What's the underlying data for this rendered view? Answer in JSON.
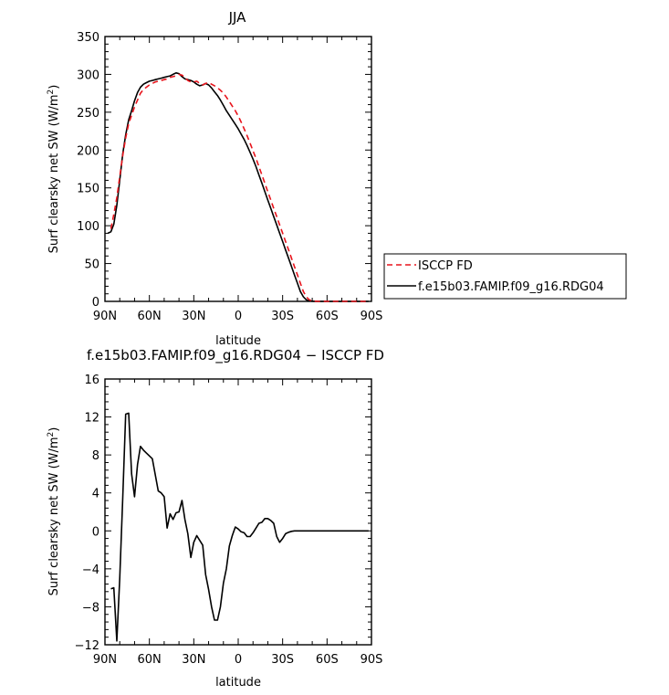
{
  "chart_data": [
    {
      "type": "line",
      "title": "JJA",
      "xlabel": "latitude",
      "ylabel": "Surf clearsky net SW (W/m²)",
      "ylabel_parts": [
        "Surf clearsky net SW (W/m",
        "2",
        ")"
      ],
      "xlim": [
        90,
        -90
      ],
      "ylim": [
        0,
        350
      ],
      "x_ticks": [
        90,
        60,
        30,
        0,
        -30,
        -60,
        -90
      ],
      "x_tick_labels": [
        "90N",
        "60N",
        "30N",
        "0",
        "30S",
        "60S",
        "90S"
      ],
      "y_ticks": [
        0,
        50,
        100,
        150,
        200,
        250,
        300,
        350
      ],
      "y_tick_labels": [
        "0",
        "50",
        "100",
        "150",
        "200",
        "250",
        "300",
        "350"
      ],
      "legend": "right",
      "series": [
        {
          "name": "ISCCP FD",
          "color": "#e8141c",
          "dash": "dashed",
          "x": [
            86,
            84,
            82,
            80,
            78,
            76,
            74,
            72,
            70,
            68,
            66,
            64,
            62,
            60,
            58,
            56,
            54,
            52,
            50,
            48,
            46,
            44,
            42,
            40,
            38,
            36,
            34,
            32,
            30,
            28,
            26,
            24,
            22,
            20,
            18,
            16,
            14,
            12,
            10,
            8,
            6,
            4,
            2,
            0,
            -2,
            -4,
            -6,
            -8,
            -10,
            -12,
            -14,
            -16,
            -18,
            -20,
            -22,
            -24,
            -26,
            -28,
            -30,
            -32,
            -34,
            -36,
            -38,
            -40,
            -42,
            -44,
            -46,
            -48,
            -50,
            -52,
            -54,
            -56,
            -58,
            -60,
            -62,
            -64,
            -66,
            -68,
            -70,
            -72,
            -74,
            -76,
            -78,
            -80,
            -82,
            -84,
            -86,
            -88
          ],
          "y": [
            96,
            115,
            137,
            165,
            193,
            216,
            235,
            246,
            257,
            266,
            275,
            280,
            283,
            286,
            288,
            290,
            291,
            292,
            293,
            294,
            296,
            297,
            298,
            300,
            299,
            296,
            292,
            290,
            290,
            291,
            288,
            286,
            288,
            289,
            287,
            285,
            282,
            279,
            275,
            270,
            264,
            258,
            252,
            245,
            237,
            228,
            219,
            209,
            199,
            189,
            178,
            167,
            156,
            145,
            134,
            123,
            112,
            101,
            90,
            79,
            68,
            57,
            46,
            35,
            24,
            13,
            6,
            2,
            0.5,
            0.2,
            0,
            0,
            0,
            0,
            0,
            0,
            0,
            0,
            0,
            0,
            0,
            0,
            0,
            0,
            0,
            0,
            0,
            0
          ]
        },
        {
          "name": "f.e15b03.FAMIP.f09_g16.RDG04",
          "color": "#000000",
          "dash": "solid",
          "x": [
            88,
            86,
            84,
            82,
            80,
            78,
            76,
            74,
            72,
            70,
            68,
            66,
            64,
            62,
            60,
            58,
            56,
            54,
            52,
            50,
            48,
            46,
            44,
            42,
            40,
            38,
            36,
            34,
            32,
            30,
            28,
            26,
            24,
            22,
            20,
            18,
            16,
            14,
            12,
            10,
            8,
            6,
            4,
            2,
            0,
            -2,
            -4,
            -6,
            -8,
            -10,
            -12,
            -14,
            -16,
            -18,
            -20,
            -22,
            -24,
            -26,
            -28,
            -30,
            -32,
            -34,
            -36,
            -38,
            -40,
            -42,
            -44,
            -46,
            -48,
            -50,
            -52,
            -54,
            -56,
            -58,
            -60,
            -62,
            -64,
            -66,
            -68,
            -70,
            -72,
            -74,
            -76,
            -78,
            -80,
            -82,
            -84,
            -86,
            -88
          ],
          "y": [
            90,
            92,
            102,
            127,
            160,
            195,
            220,
            240,
            252,
            265,
            276,
            283,
            287,
            289,
            291,
            292,
            293,
            294,
            295,
            296,
            297,
            298,
            300,
            302,
            301,
            297,
            294,
            293,
            292,
            290,
            287,
            285,
            286,
            288,
            286,
            282,
            277,
            272,
            266,
            259,
            252,
            246,
            240,
            234,
            228,
            221,
            214,
            206,
            197,
            188,
            178,
            167,
            156,
            145,
            134,
            123,
            112,
            101,
            90,
            79,
            68,
            57,
            46,
            35,
            24,
            13,
            6,
            2,
            0.5,
            0.2,
            0,
            0,
            0,
            0,
            0,
            0,
            0,
            0,
            0,
            0,
            0,
            0,
            0,
            0,
            0,
            0,
            0,
            0,
            0
          ]
        }
      ]
    },
    {
      "type": "line",
      "title": "f.e15b03.FAMIP.f09_g16.RDG04 − ISCCP FD",
      "xlabel": "latitude",
      "ylabel": "Surf clearsky net SW (W/m²)",
      "ylabel_parts": [
        "Surf clearsky net SW (W/m",
        "2",
        ")"
      ],
      "xlim": [
        90,
        -90
      ],
      "ylim": [
        -12,
        16
      ],
      "x_ticks": [
        90,
        60,
        30,
        0,
        -30,
        -60,
        -90
      ],
      "x_tick_labels": [
        "90N",
        "60N",
        "30N",
        "0",
        "30S",
        "60S",
        "90S"
      ],
      "y_ticks": [
        -12,
        -8,
        -4,
        0,
        4,
        8,
        12,
        16
      ],
      "y_tick_labels": [
        "−12",
        "−8",
        "−4",
        "0",
        "4",
        "8",
        "12",
        "16"
      ],
      "series": [
        {
          "color": "#000000",
          "dash": "solid",
          "x": [
            86,
            84,
            82,
            80,
            78,
            76,
            74,
            72,
            70,
            68,
            66,
            64,
            62,
            58,
            54,
            52,
            50,
            48,
            46,
            44,
            42,
            40,
            38,
            36,
            34,
            32,
            30,
            28,
            26,
            24,
            22,
            20,
            18,
            16,
            14,
            12,
            10,
            8,
            6,
            4,
            2,
            0,
            -2,
            -4,
            -6,
            -8,
            -10,
            -12,
            -14,
            -16,
            -18,
            -20,
            -22,
            -24,
            -26,
            -28,
            -30,
            -32,
            -34,
            -36,
            -38,
            -40,
            -42,
            -44,
            -46,
            -48,
            -50,
            -52,
            -54,
            -56,
            -58,
            -60,
            -62,
            -64,
            -66,
            -68,
            -70,
            -72,
            -74,
            -76,
            -78,
            -80,
            -82,
            -84,
            -86,
            -88
          ],
          "y": [
            -6.1,
            -6.0,
            -11.6,
            -5.0,
            3.5,
            12.3,
            12.4,
            6.0,
            3.6,
            7.0,
            8.9,
            8.5,
            8.2,
            7.6,
            4.2,
            4.0,
            3.6,
            0.3,
            1.8,
            1.2,
            1.9,
            2.0,
            3.2,
            1.2,
            -0.3,
            -2.8,
            -1.2,
            -0.5,
            -1.0,
            -1.5,
            -4.6,
            -6.2,
            -8.0,
            -9.4,
            -9.4,
            -8.0,
            -5.5,
            -4.0,
            -1.6,
            -0.5,
            0.4,
            0.2,
            -0.1,
            -0.2,
            -0.6,
            -0.6,
            -0.2,
            0.3,
            0.8,
            0.9,
            1.3,
            1.3,
            1.1,
            0.8,
            -0.6,
            -1.2,
            -0.8,
            -0.3,
            -0.15,
            -0.05,
            0,
            0,
            0,
            0,
            0,
            0,
            0,
            0,
            0,
            0,
            0,
            0,
            0,
            0,
            0,
            0,
            0,
            0,
            0,
            0,
            0,
            0,
            0,
            0,
            0,
            0
          ]
        }
      ]
    }
  ]
}
